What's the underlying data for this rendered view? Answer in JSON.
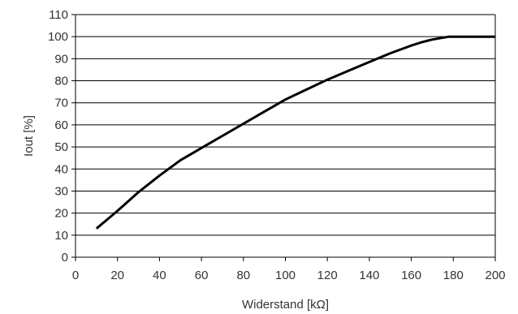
{
  "chart_data": {
    "type": "line",
    "title": "",
    "xlabel": "Widerstand [kΩ]",
    "ylabel": "Iout [%]",
    "xlim": [
      0,
      200
    ],
    "ylim": [
      0,
      110
    ],
    "x_ticks": [
      0,
      20,
      40,
      60,
      80,
      100,
      120,
      140,
      160,
      180,
      200
    ],
    "y_ticks": [
      0,
      10,
      20,
      30,
      40,
      50,
      60,
      70,
      80,
      90,
      100,
      110
    ],
    "x_tick_labels": [
      "0",
      "20",
      "40",
      "60",
      "80",
      "100",
      "120",
      "140",
      "160",
      "180",
      "200"
    ],
    "y_tick_labels": [
      "0",
      "10",
      "20",
      "30",
      "40",
      "50",
      "60",
      "70",
      "80",
      "90",
      "100",
      "110"
    ],
    "grid": "horizontal",
    "legend": "none",
    "series": [
      {
        "color": "#000000",
        "x": [
          10,
          20,
          30,
          40,
          50,
          60,
          70,
          80,
          90,
          100,
          110,
          120,
          130,
          140,
          150,
          160,
          165,
          170,
          178,
          200
        ],
        "values": [
          13,
          21,
          29.5,
          37,
          44,
          49.5,
          55,
          60.5,
          66,
          71.5,
          76,
          80.5,
          84.5,
          88.5,
          92.5,
          96,
          97.5,
          98.7,
          100,
          100
        ]
      }
    ]
  }
}
